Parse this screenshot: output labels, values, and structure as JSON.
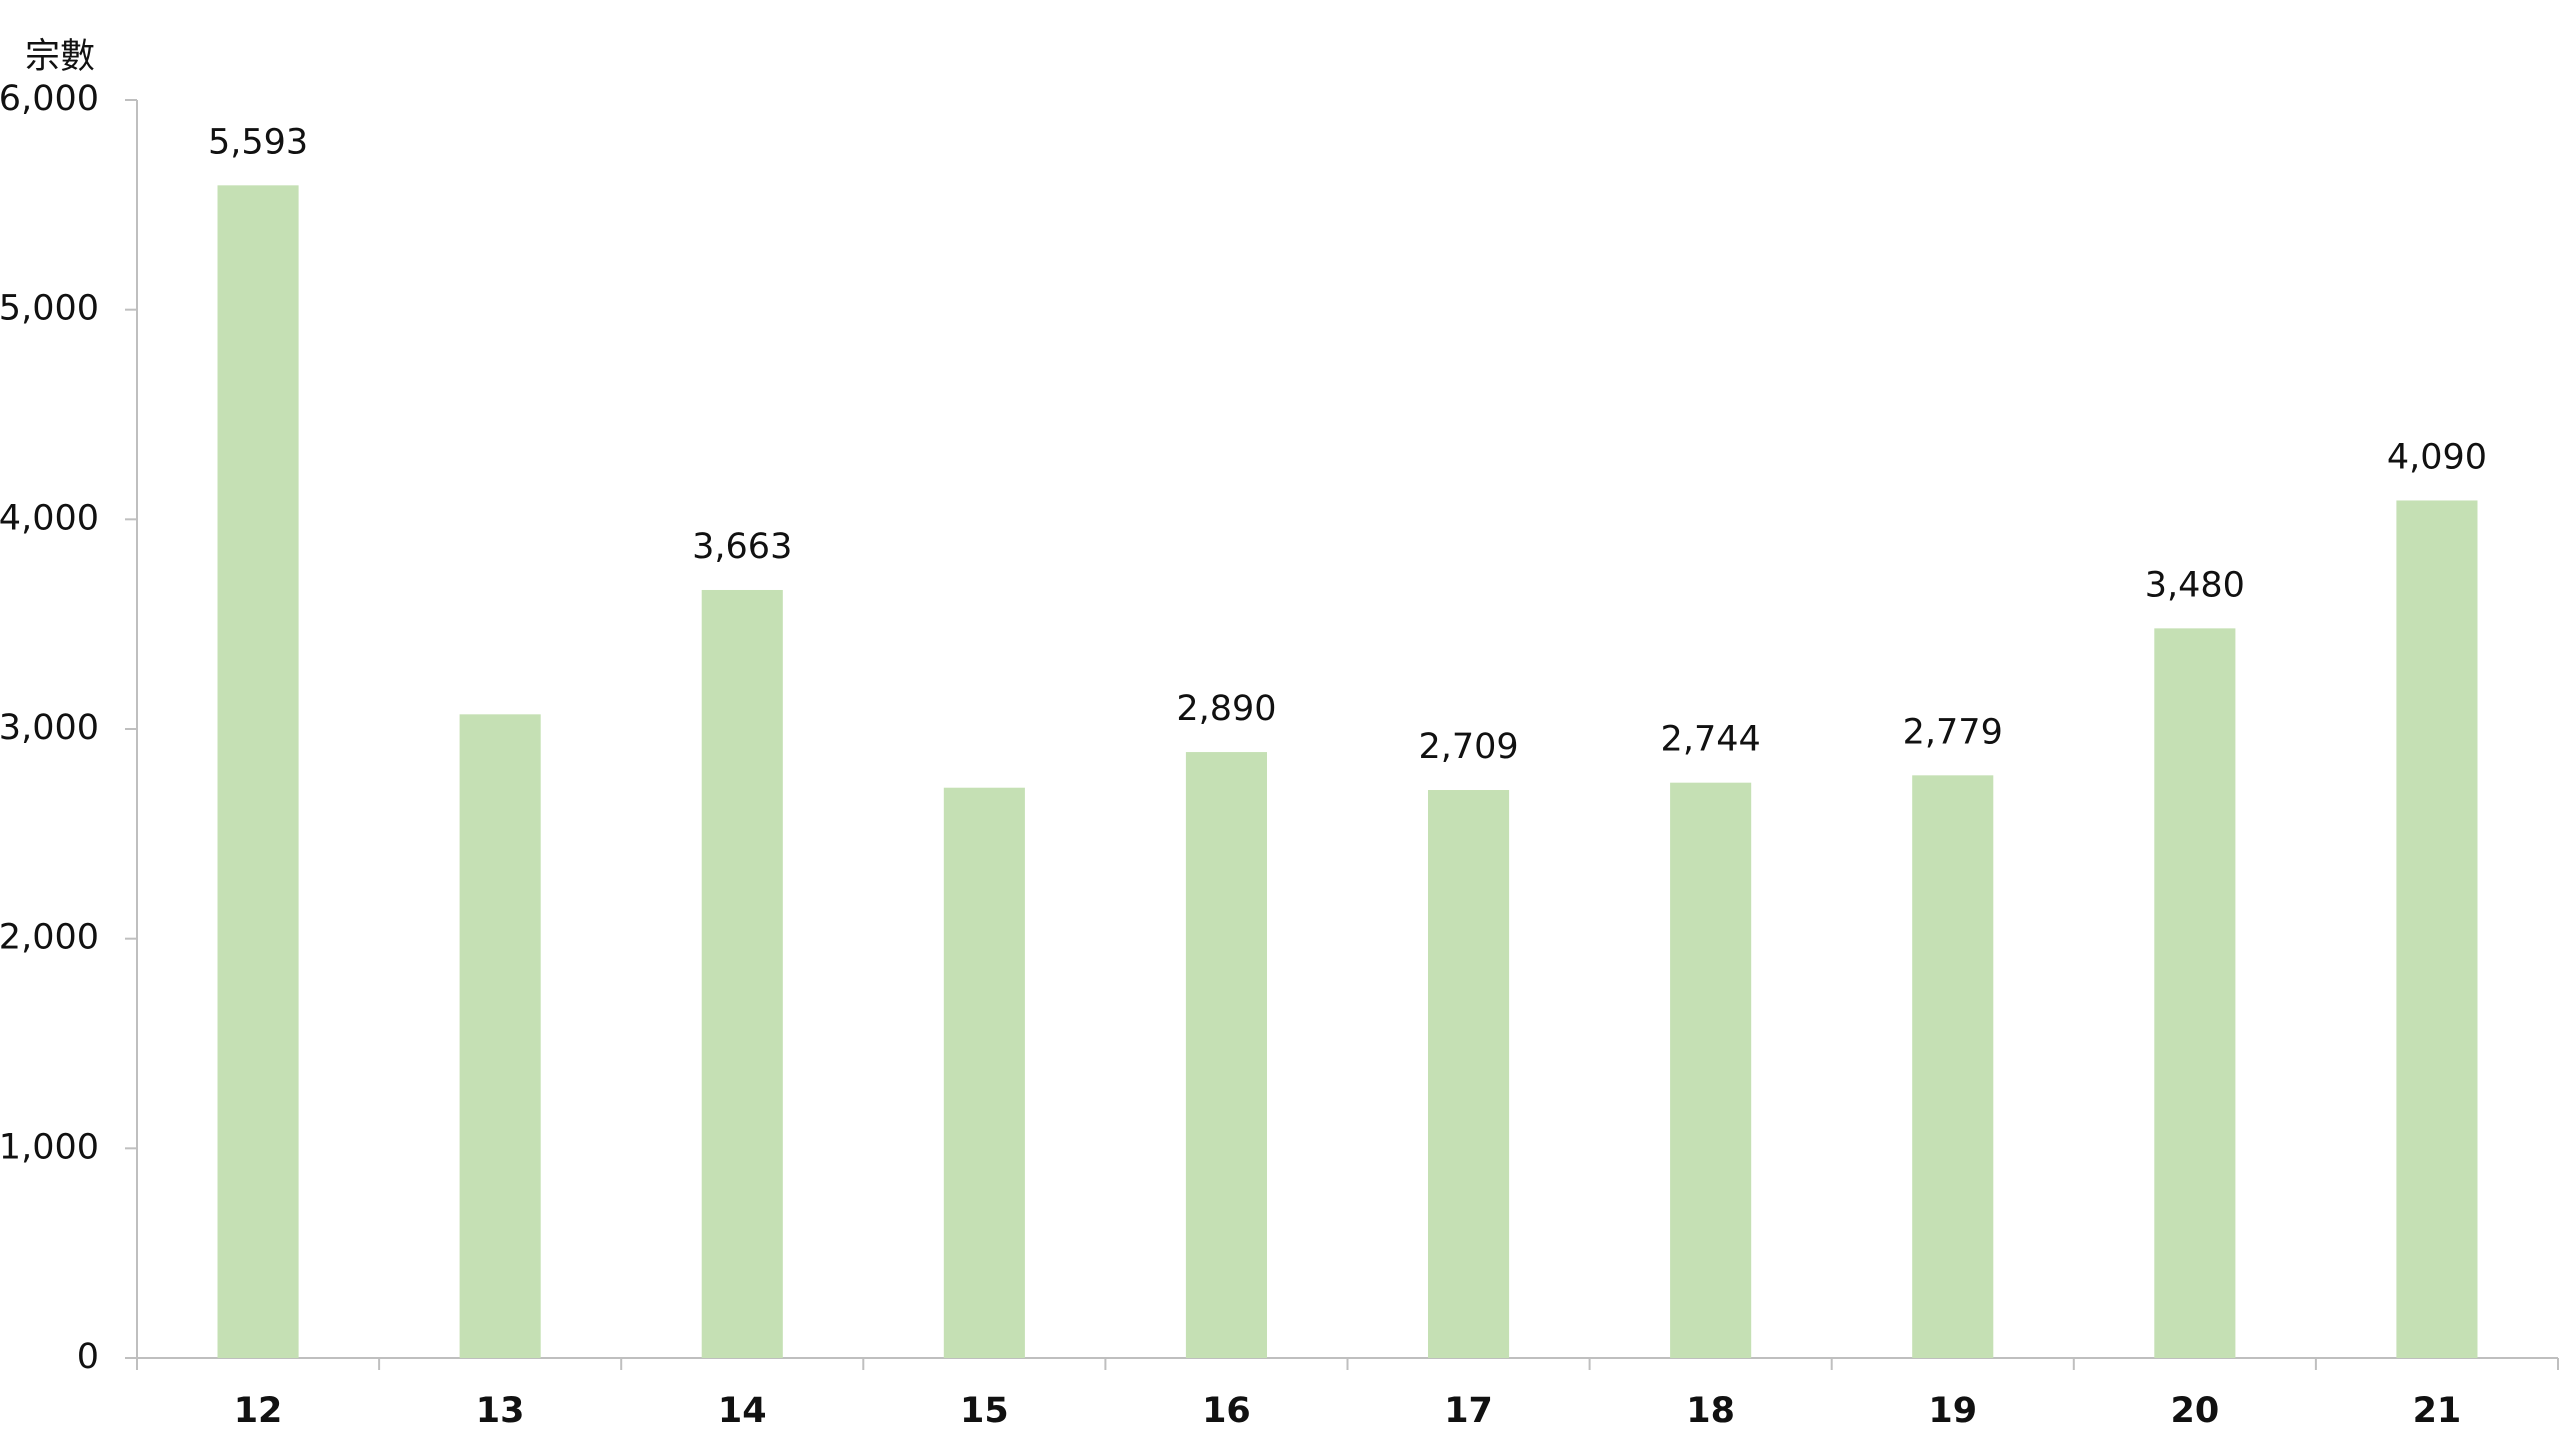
{
  "chart_data": {
    "type": "bar",
    "y_label": "宗數",
    "categories": [
      "12",
      "13",
      "14",
      "15",
      "16",
      "17",
      "18",
      "19",
      "20",
      "21"
    ],
    "values": [
      5593,
      3070,
      3663,
      2720,
      2890,
      2709,
      2744,
      2779,
      3480,
      4090
    ],
    "value_labels": [
      "5,593",
      null,
      "3,663",
      null,
      "2,890",
      "2,709",
      "2,744",
      "2,779",
      "3,480",
      "4,090"
    ],
    "color": "#c5e0b4",
    "ylim": [
      0,
      6000
    ],
    "yticks": [
      0,
      {
        "value": 1000,
        "label": "1,000"
      },
      {
        "value": 2000,
        "label": "2,000"
      },
      {
        "value": 3000,
        "label": "3,000"
      },
      {
        "value": 4000,
        "label": "4,000"
      },
      {
        "value": 5000,
        "label": "5,000"
      },
      {
        "value": 6000,
        "label": "6,000"
      }
    ],
    "grid": false
  }
}
